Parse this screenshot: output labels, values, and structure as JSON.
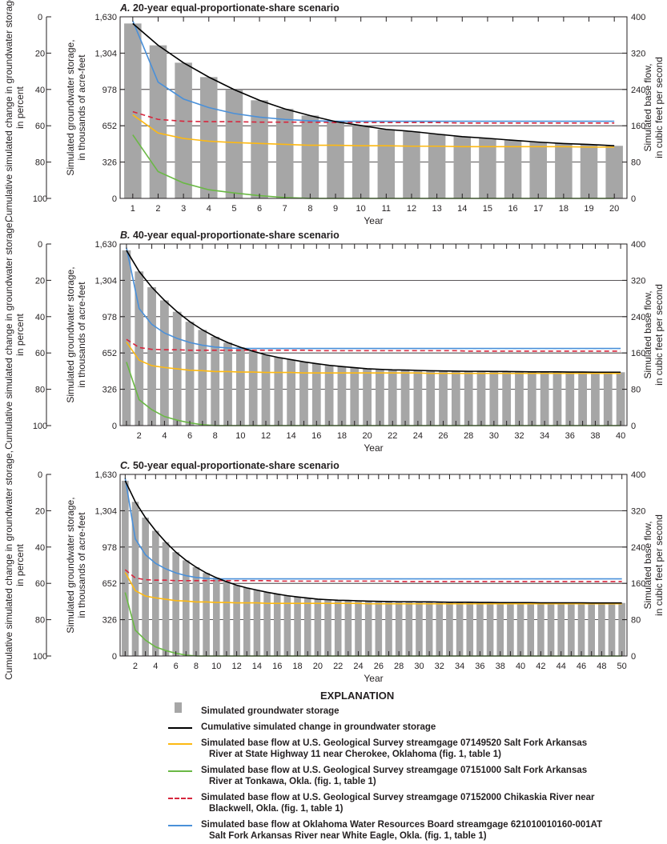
{
  "colors": {
    "bars": "#a6a6a6",
    "cumulative": "#000000",
    "cherokee": "#fdb913",
    "tonkawa": "#6ab845",
    "blackwell": "#d7263d",
    "white_eagle": "#4a90d9"
  },
  "chart_data": [
    {
      "type": "bar+line",
      "title_letter": "A.",
      "title": "20-year equal-proportionate-share scenario",
      "xlabel": "Year",
      "ylabel_left_outer": "Cumulative simulated change in groundwater storage, in percent",
      "ylabel_left": "Simulated groundwater storage, in thousands of acre-feet",
      "ylabel_right": "Simulated base flow, in cubic feet per second",
      "x_ticks": [
        1,
        2,
        3,
        4,
        5,
        6,
        7,
        8,
        9,
        10,
        11,
        12,
        13,
        14,
        15,
        16,
        17,
        18,
        19,
        20
      ],
      "ylim_percent": [
        0,
        100
      ],
      "ylim_storage": [
        0,
        1630
      ],
      "ylim_flow": [
        0,
        400
      ],
      "percent_ticks": [
        0,
        20,
        40,
        60,
        80,
        100
      ],
      "storage_ticks": [
        "0",
        "326",
        "652",
        "978",
        "1,304",
        "1,630"
      ],
      "flow_ticks": [
        0,
        80,
        160,
        240,
        320,
        400
      ],
      "years": 20,
      "storage": [
        1570,
        1374,
        1218,
        1089,
        977,
        881,
        804,
        744,
        689,
        653,
        620,
        601,
        577,
        555,
        539,
        522,
        505,
        493,
        484,
        472
      ],
      "cumulative_percent": [
        3.7,
        15.7,
        25.3,
        33.2,
        40.1,
        46.0,
        50.7,
        54.4,
        57.7,
        59.9,
        62.0,
        63.1,
        64.6,
        66.0,
        66.9,
        68.0,
        69.0,
        69.8,
        70.3,
        71.0
      ],
      "cherokee": [
        184,
        144,
        132,
        126,
        123,
        121,
        119,
        117,
        117,
        116,
        116,
        115,
        115,
        114,
        114,
        114,
        114,
        114,
        113,
        113
      ],
      "tonkawa": [
        140,
        59,
        34,
        19,
        12,
        6,
        2,
        0,
        0,
        0,
        0,
        0,
        0,
        0,
        0,
        0,
        0,
        0,
        0,
        0
      ],
      "blackwell": [
        191,
        174,
        170,
        169,
        169,
        168,
        168,
        168,
        167,
        167,
        167,
        167,
        167,
        166,
        166,
        166,
        166,
        166,
        166,
        166
      ],
      "white_eagle": [
        391,
        256,
        219,
        200,
        187,
        179,
        174,
        171,
        170,
        170,
        170,
        170,
        170,
        170,
        170,
        170,
        170,
        170,
        170,
        170
      ]
    },
    {
      "type": "bar+line",
      "title_letter": "B.",
      "title": "40-year equal-proportionate-share scenario",
      "xlabel": "Year",
      "ylabel_left_outer": "Cumulative simulated change in groundwater storage, in percent",
      "ylabel_left": "Simulated groundwater storage, in thousands of acre-feet",
      "ylabel_right": "Simulated base flow, in cubic feet per second",
      "x_ticks": [
        2,
        4,
        6,
        8,
        10,
        12,
        14,
        16,
        18,
        20,
        22,
        24,
        26,
        28,
        30,
        32,
        34,
        36,
        38,
        40
      ],
      "ylim_percent": [
        0,
        100
      ],
      "ylim_storage": [
        0,
        1630
      ],
      "ylim_flow": [
        0,
        400
      ],
      "percent_ticks": [
        0,
        20,
        40,
        60,
        80,
        100
      ],
      "storage_ticks": [
        "0",
        "326",
        "652",
        "978",
        "1,304",
        "1,630"
      ],
      "flow_ticks": [
        0,
        80,
        160,
        240,
        320,
        400
      ],
      "years": 40,
      "storage": [
        1573,
        1384,
        1242,
        1124,
        1022,
        932,
        859,
        797,
        745,
        703,
        667,
        636,
        612,
        591,
        572,
        556,
        541,
        529,
        520,
        510,
        505,
        501,
        498,
        495,
        493,
        491,
        489,
        488,
        487,
        486,
        485,
        484,
        483,
        482,
        482,
        481,
        481,
        480,
        480,
        479
      ],
      "cumulative_percent": [
        3.5,
        15.1,
        23.8,
        31.0,
        37.3,
        42.8,
        47.3,
        51.1,
        54.3,
        56.9,
        59.1,
        61.0,
        62.5,
        63.7,
        64.9,
        65.9,
        66.8,
        67.5,
        68.1,
        68.7,
        69.0,
        69.3,
        69.4,
        69.6,
        69.8,
        69.9,
        70.0,
        70.1,
        70.1,
        70.2,
        70.2,
        70.3,
        70.4,
        70.4,
        70.4,
        70.5,
        70.5,
        70.6,
        70.6,
        70.6
      ],
      "cherokee": [
        184,
        144,
        132,
        128,
        125,
        122,
        121,
        119,
        119,
        118,
        118,
        117,
        117,
        117,
        116,
        116,
        116,
        116,
        116,
        116,
        116,
        116,
        116,
        116,
        115,
        115,
        115,
        115,
        115,
        115,
        115,
        115,
        115,
        115,
        115,
        115,
        115,
        115,
        115,
        115
      ],
      "tonkawa": [
        140,
        57,
        35,
        20,
        12,
        6,
        2,
        0,
        0,
        0,
        0,
        0,
        0,
        0,
        0,
        0,
        0,
        0,
        0,
        0,
        0,
        0,
        0,
        0,
        0,
        0,
        0,
        0,
        0,
        0,
        0,
        0,
        0,
        0,
        0,
        0,
        0,
        0,
        0,
        0
      ],
      "blackwell": [
        190,
        172,
        168,
        167,
        167,
        166,
        166,
        166,
        166,
        166,
        166,
        166,
        166,
        166,
        166,
        165,
        165,
        165,
        165,
        165,
        165,
        165,
        165,
        165,
        165,
        165,
        165,
        164,
        164,
        164,
        164,
        164,
        164,
        164,
        164,
        164,
        164,
        164,
        164,
        164
      ],
      "white_eagle": [
        392,
        258,
        223,
        204,
        192,
        183,
        177,
        173,
        171,
        170,
        170,
        170,
        170,
        170,
        170,
        170,
        170,
        170,
        170,
        170,
        170,
        170,
        170,
        170,
        170,
        170,
        170,
        170,
        170,
        170,
        170,
        170,
        170,
        170,
        170,
        170,
        170,
        170,
        170,
        170
      ]
    },
    {
      "type": "bar+line",
      "title_letter": "C.",
      "title": "50-year equal-proportionate-share scenario",
      "xlabel": "Year",
      "ylabel_left_outer": "Cumulative simulated change in groundwater storage, in percent",
      "ylabel_left": "Simulated groundwater storage, in thousands of acre-feet",
      "ylabel_right": "Simulated base flow, in cubic feet per second",
      "x_ticks": [
        2,
        4,
        6,
        8,
        10,
        12,
        14,
        16,
        18,
        20,
        22,
        24,
        26,
        28,
        30,
        32,
        34,
        36,
        38,
        40,
        42,
        44,
        46,
        48,
        50
      ],
      "ylim_percent": [
        0,
        100
      ],
      "ylim_storage": [
        0,
        1630
      ],
      "ylim_flow": [
        0,
        400
      ],
      "percent_ticks": [
        0,
        20,
        40,
        60,
        80,
        100
      ],
      "storage_ticks": [
        "0",
        "326",
        "652",
        "978",
        "1,304",
        "1,630"
      ],
      "flow_ticks": [
        0,
        80,
        160,
        240,
        320,
        400
      ],
      "years": 50,
      "storage": [
        1573,
        1384,
        1242,
        1124,
        1022,
        932,
        859,
        797,
        745,
        703,
        667,
        636,
        612,
        591,
        572,
        556,
        541,
        529,
        520,
        510,
        505,
        501,
        498,
        495,
        493,
        491,
        489,
        488,
        487,
        486,
        485,
        484,
        483,
        482,
        482,
        481,
        481,
        480,
        480,
        479,
        479,
        478,
        478,
        477,
        477,
        477,
        476,
        476,
        476,
        476
      ],
      "cumulative_percent": [
        3.5,
        15.1,
        23.8,
        31.0,
        37.3,
        42.8,
        47.3,
        51.1,
        54.3,
        56.9,
        59.1,
        61.0,
        62.5,
        63.7,
        64.9,
        65.9,
        66.8,
        67.5,
        68.1,
        68.7,
        69.0,
        69.3,
        69.4,
        69.6,
        69.8,
        69.9,
        70.0,
        70.1,
        70.1,
        70.2,
        70.2,
        70.3,
        70.4,
        70.4,
        70.4,
        70.5,
        70.5,
        70.6,
        70.6,
        70.6,
        70.6,
        70.7,
        70.7,
        70.7,
        70.7,
        70.7,
        70.8,
        70.8,
        70.8,
        70.8
      ],
      "cherokee": [
        184,
        144,
        132,
        128,
        125,
        122,
        121,
        119,
        119,
        118,
        118,
        117,
        117,
        117,
        116,
        116,
        116,
        116,
        116,
        116,
        116,
        116,
        116,
        116,
        115,
        115,
        115,
        115,
        115,
        115,
        115,
        115,
        115,
        115,
        115,
        115,
        115,
        115,
        115,
        115,
        115,
        115,
        115,
        115,
        115,
        115,
        115,
        115,
        115,
        115
      ],
      "tonkawa": [
        140,
        57,
        35,
        20,
        12,
        6,
        2,
        0,
        0,
        0,
        0,
        0,
        0,
        0,
        0,
        0,
        0,
        0,
        0,
        0,
        0,
        0,
        0,
        0,
        0,
        0,
        0,
        0,
        0,
        0,
        0,
        0,
        0,
        0,
        0,
        0,
        0,
        0,
        0,
        0,
        0,
        0,
        0,
        0,
        0,
        0,
        0,
        0,
        0,
        0
      ],
      "blackwell": [
        190,
        172,
        168,
        167,
        167,
        166,
        166,
        166,
        166,
        166,
        166,
        166,
        166,
        166,
        166,
        165,
        165,
        165,
        165,
        165,
        165,
        165,
        165,
        165,
        165,
        165,
        165,
        164,
        164,
        164,
        164,
        164,
        164,
        164,
        164,
        164,
        164,
        164,
        164,
        164,
        164,
        164,
        164,
        164,
        164,
        164,
        164,
        164,
        164,
        164
      ],
      "white_eagle": [
        392,
        258,
        223,
        204,
        192,
        183,
        177,
        173,
        171,
        170,
        170,
        170,
        170,
        170,
        170,
        170,
        170,
        170,
        170,
        170,
        170,
        170,
        170,
        170,
        170,
        170,
        170,
        170,
        170,
        170,
        170,
        170,
        170,
        170,
        170,
        170,
        170,
        170,
        170,
        170,
        170,
        170,
        170,
        170,
        170,
        170,
        170,
        170,
        170,
        170
      ]
    }
  ],
  "legend": {
    "title": "EXPLANATION",
    "items": [
      {
        "key": "bars",
        "line1": "Simulated groundwater storage",
        "line2": ""
      },
      {
        "key": "cumulative",
        "line1": "Cumulative simulated change in groundwater storage",
        "line2": ""
      },
      {
        "key": "cherokee",
        "line1": "Simulated base flow at U.S. Geological Survey streamgage 07149520 Salt Fork Arkansas",
        "line2": "River at State Highway 11 near Cherokee, Oklahoma (fig. 1, table 1)"
      },
      {
        "key": "tonkawa",
        "line1": "Simulated base flow at U.S. Geological Survey streamgage 07151000 Salt Fork Arkansas",
        "line2": "River at Tonkawa, Okla. (fig. 1, table 1)"
      },
      {
        "key": "blackwell",
        "line1": "Simulated base flow at U.S. Geological Survey streamgage 07152000 Chikaskia River near",
        "line2": "Blackwell, Okla. (fig. 1, table 1)"
      },
      {
        "key": "white_eagle",
        "line1": "Simulated base flow at Oklahoma Water Resources Board streamgage 621010010160-001AT",
        "line2": "Salt Fork Arkansas River near White Eagle, Okla. (fig. 1, table 1)"
      }
    ]
  }
}
